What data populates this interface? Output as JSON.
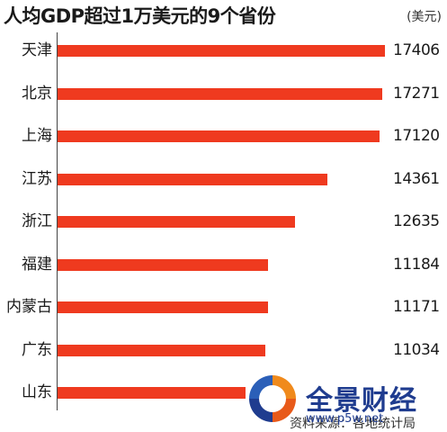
{
  "chart_data": {
    "type": "bar",
    "orientation": "horizontal",
    "title": "人均GDP超过1万美元的9个省份",
    "unit": "(美元)",
    "categories": [
      "天津",
      "北京",
      "上海",
      "江苏",
      "浙江",
      "福建",
      "内蒙古",
      "广东",
      "山东"
    ],
    "values": [
      17406,
      17271,
      17120,
      14361,
      12635,
      11184,
      11171,
      11034,
      10000
    ],
    "value_labels": [
      "17406",
      "17271",
      "17120",
      "14361",
      "12635",
      "11184",
      "11171",
      "11034",
      ""
    ],
    "xlim": [
      0,
      17406
    ],
    "grid": false,
    "legend": "none",
    "colors": {
      "bar": "#ef3a1f"
    },
    "source": "资料来源：各地统计局"
  },
  "watermark": {
    "name": "全景财经",
    "url": "www.p5w.net"
  }
}
